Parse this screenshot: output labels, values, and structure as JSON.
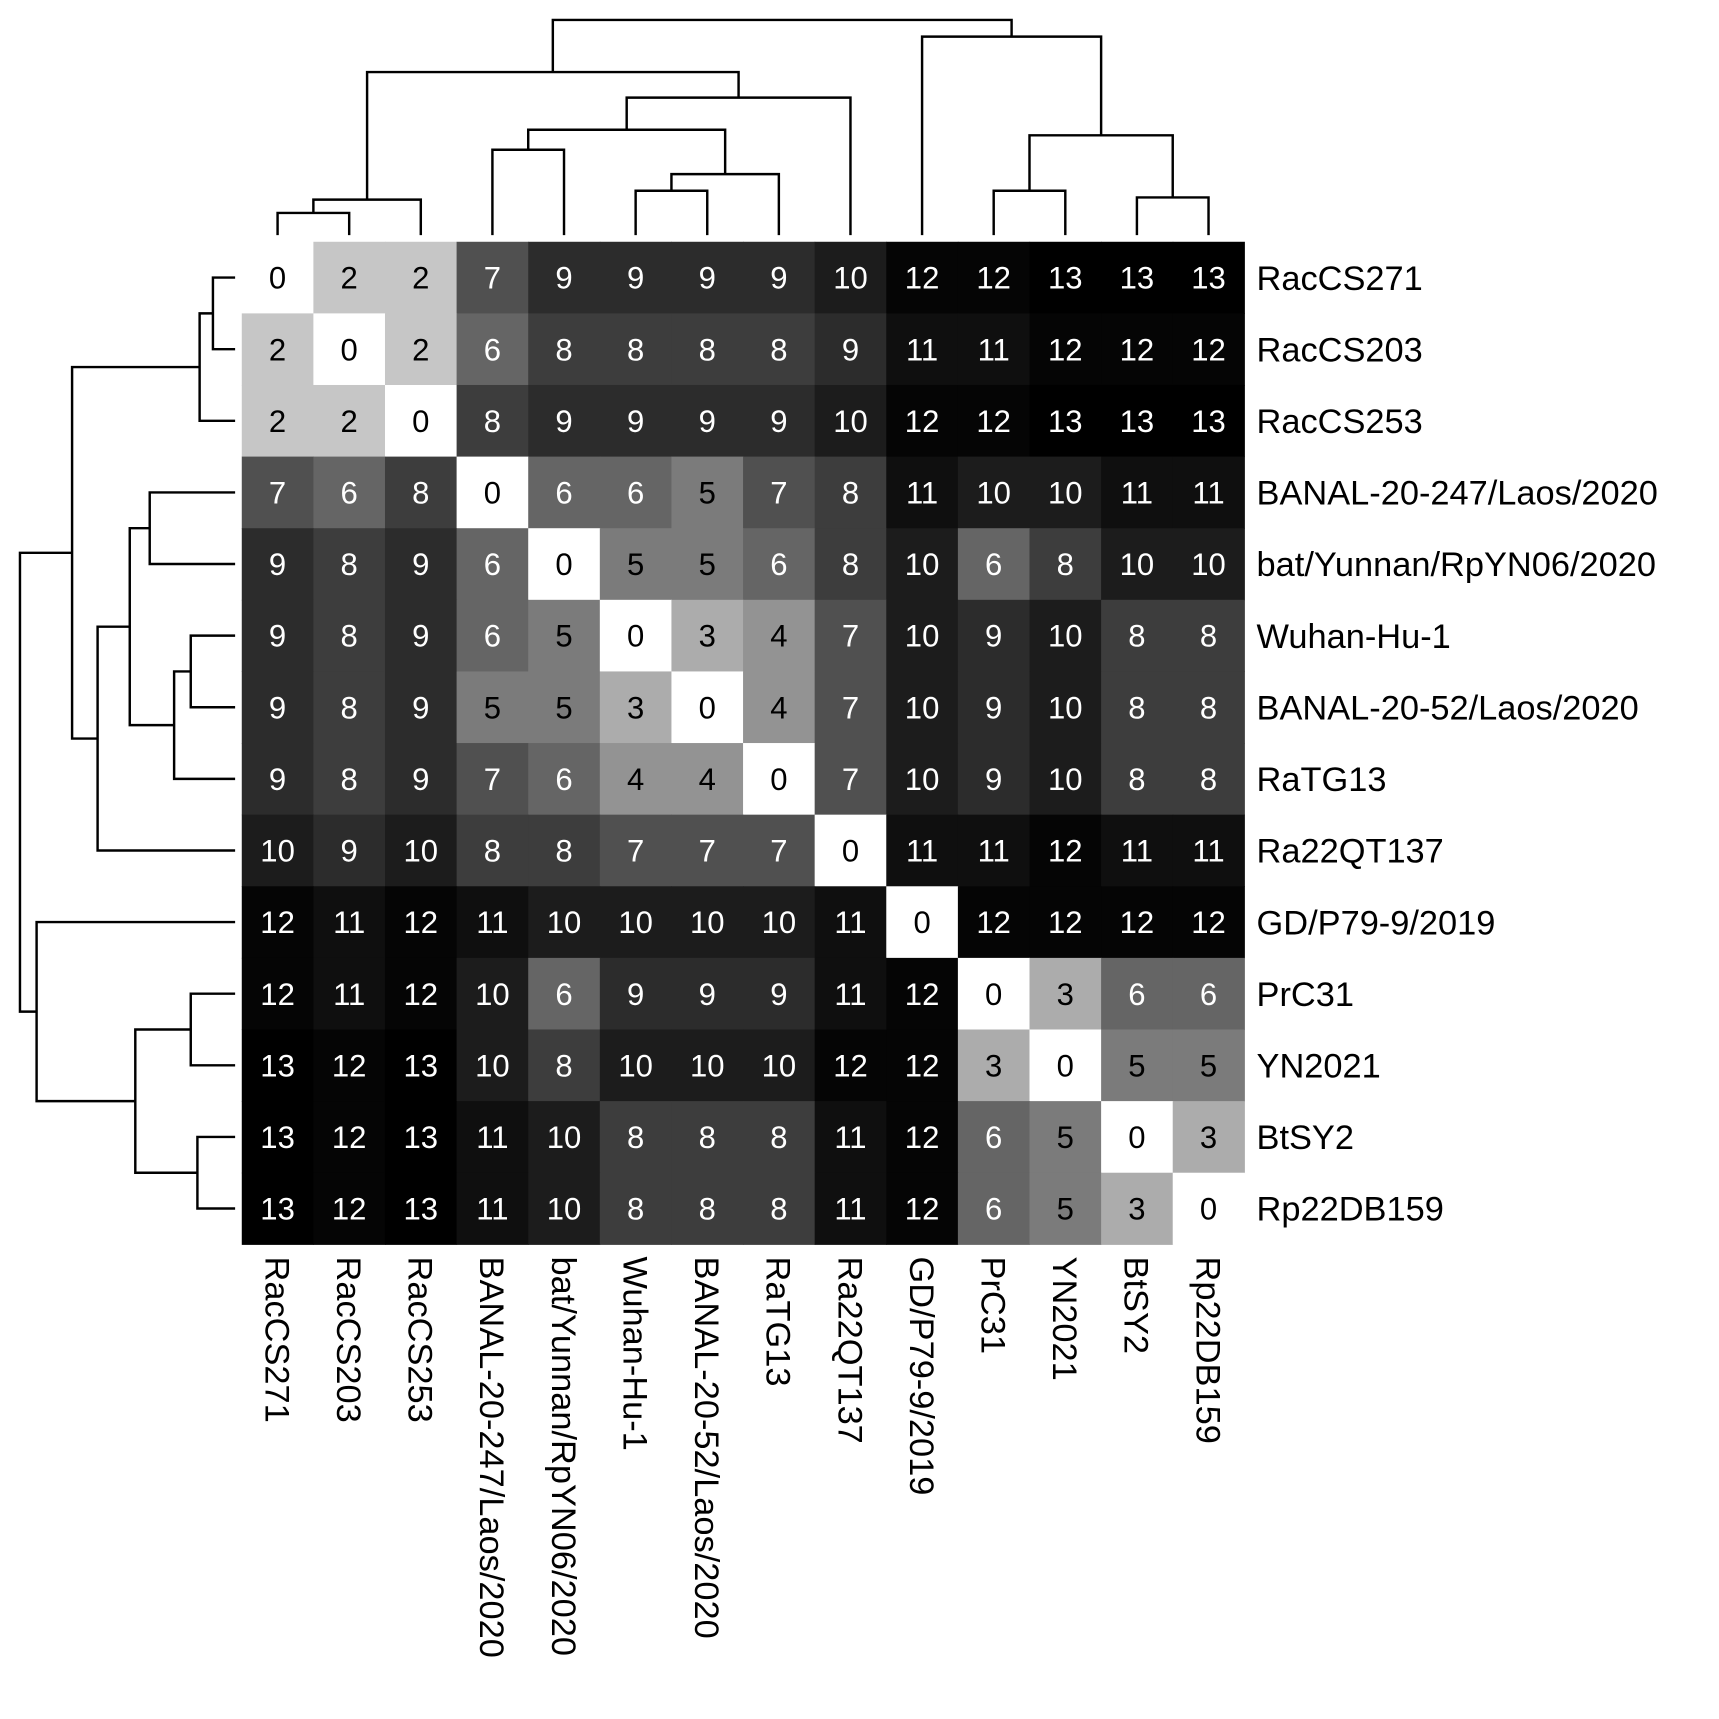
{
  "chart_data": {
    "type": "heatmap",
    "title": "",
    "labels": [
      "RacCS271",
      "RacCS203",
      "RacCS253",
      "BANAL-20-247/Laos/2020",
      "bat/Yunnan/RpYN06/2020",
      "Wuhan-Hu-1",
      "BANAL-20-52/Laos/2020",
      "RaTG13",
      "Ra22QT137",
      "GD/P79-9/2019",
      "PrC31",
      "YN2021",
      "BtSY2",
      "Rp22DB159"
    ],
    "matrix": [
      [
        0,
        2,
        2,
        7,
        9,
        9,
        9,
        9,
        10,
        12,
        12,
        13,
        13,
        13
      ],
      [
        2,
        0,
        2,
        6,
        8,
        8,
        8,
        8,
        9,
        11,
        11,
        12,
        12,
        12
      ],
      [
        2,
        2,
        0,
        8,
        9,
        9,
        9,
        9,
        10,
        12,
        12,
        13,
        13,
        13
      ],
      [
        7,
        6,
        8,
        0,
        6,
        6,
        5,
        7,
        8,
        11,
        10,
        10,
        11,
        11
      ],
      [
        9,
        8,
        9,
        6,
        0,
        5,
        5,
        6,
        8,
        10,
        6,
        8,
        10,
        10
      ],
      [
        9,
        8,
        9,
        6,
        5,
        0,
        3,
        4,
        7,
        10,
        9,
        10,
        8,
        8
      ],
      [
        9,
        8,
        9,
        5,
        5,
        3,
        0,
        4,
        7,
        10,
        9,
        10,
        8,
        8
      ],
      [
        9,
        8,
        9,
        7,
        6,
        4,
        4,
        0,
        7,
        10,
        9,
        10,
        8,
        8
      ],
      [
        10,
        9,
        10,
        8,
        8,
        7,
        7,
        7,
        0,
        11,
        11,
        12,
        11,
        11
      ],
      [
        12,
        11,
        12,
        11,
        10,
        10,
        10,
        10,
        11,
        0,
        12,
        12,
        12,
        12
      ],
      [
        12,
        11,
        12,
        10,
        6,
        9,
        9,
        9,
        11,
        12,
        0,
        3,
        6,
        6
      ],
      [
        13,
        12,
        13,
        10,
        8,
        10,
        10,
        10,
        12,
        12,
        3,
        0,
        5,
        5
      ],
      [
        13,
        12,
        13,
        11,
        10,
        8,
        8,
        8,
        11,
        12,
        6,
        5,
        0,
        3
      ],
      [
        13,
        12,
        13,
        11,
        10,
        8,
        8,
        8,
        11,
        12,
        6,
        5,
        3,
        0
      ]
    ],
    "color_scale": {
      "low": "#ffffff",
      "high": "#000000"
    },
    "dendrogram": "rows and columns clustered, dendrograms on top and left"
  }
}
